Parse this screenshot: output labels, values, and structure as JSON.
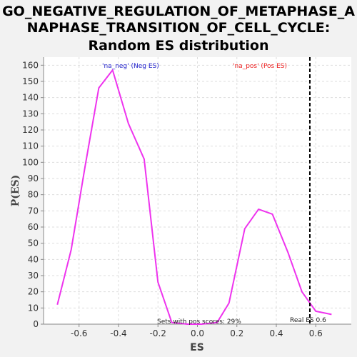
{
  "chart_data": {
    "type": "line",
    "title_lines": [
      "GO_NEGATIVE_REGULATION_OF_METAPHASE_A",
      "NAPHASE_TRANSITION_OF_CELL_CYCLE:",
      "Random ES distribution"
    ],
    "xlabel": "ES",
    "ylabel": "P(ES)",
    "xlim": [
      -0.78,
      0.78
    ],
    "ylim": [
      0,
      165
    ],
    "x_ticks": [
      -0.6,
      -0.4,
      -0.2,
      0.0,
      0.2,
      0.4,
      0.6
    ],
    "x_tick_labels": [
      "-0.6",
      "-0.4",
      "-0.2",
      "0.0",
      "0.2",
      "0.4",
      "0.6"
    ],
    "y_ticks": [
      0,
      10,
      20,
      30,
      40,
      50,
      60,
      70,
      80,
      90,
      100,
      110,
      120,
      130,
      140,
      150,
      160
    ],
    "grid": true,
    "series": [
      {
        "color": "#ee33ee",
        "x": [
          -0.71,
          -0.64,
          -0.57,
          -0.5,
          -0.43,
          -0.35,
          -0.27,
          -0.2,
          -0.13,
          -0.05,
          0.02,
          0.1,
          0.16,
          0.24,
          0.31,
          0.38,
          0.46,
          0.53,
          0.6,
          0.68
        ],
        "y": [
          12,
          46,
          97,
          146,
          157,
          124,
          102,
          26,
          1,
          0,
          0,
          1,
          13,
          59,
          71,
          68,
          44,
          20,
          8,
          6
        ]
      }
    ],
    "reference_line": {
      "x": 0.57,
      "label": "Real ES 0.6",
      "color": "#000000"
    },
    "legend_labels": [
      {
        "text": "'na_neg' (Neg ES)",
        "color": "#2222cc"
      },
      {
        "text": "'na_pos' (Pos ES)",
        "color": "#ee2222"
      }
    ],
    "annotation": "Sets with pos scores: 29%"
  }
}
